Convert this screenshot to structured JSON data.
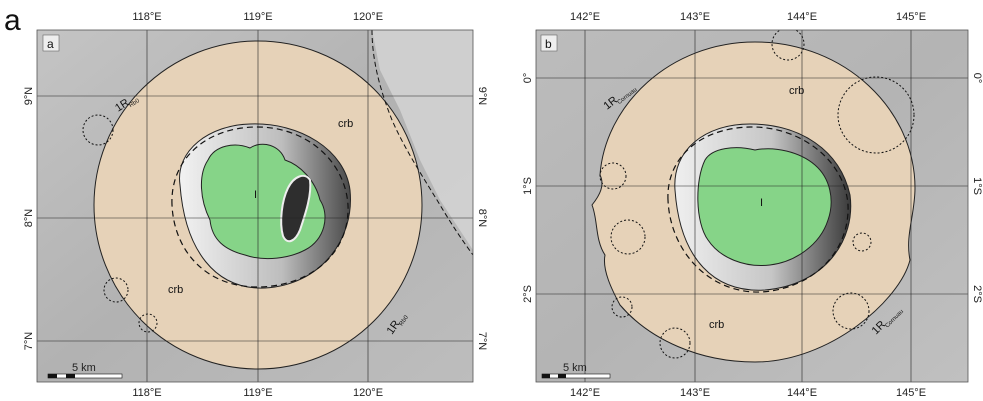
{
  "figure": {
    "label": "a",
    "panels": [
      {
        "id": "a",
        "panel_label": "a",
        "lon_labels": [
          "118°E",
          "119°E",
          "120°E"
        ],
        "lat_labels_left": [
          "9°N",
          "8°N",
          "7°N"
        ],
        "lat_labels_right": [
          "9°N",
          "8°N",
          "7°N"
        ],
        "unit_labels": [
          "crb",
          "crb",
          "I"
        ],
        "radius_label_main": "1R",
        "radius_label_sub": "Rb0",
        "scale_label": "5 km"
      },
      {
        "id": "b",
        "panel_label": "b",
        "lon_labels": [
          "142°E",
          "143°E",
          "144°E",
          "145°E"
        ],
        "lat_labels_left": [
          "0°",
          "1°S",
          "2°S"
        ],
        "lat_labels_right": [
          "0°",
          "1°S",
          "2°S"
        ],
        "unit_labels": [
          "crb",
          "crb",
          "I"
        ],
        "radius_label_main": "1R",
        "radius_label_sub": "Cornuau",
        "scale_label": "5 km"
      }
    ]
  },
  "colors": {
    "terrain": "#b8b8b8",
    "ejecta": "#e6d2b8",
    "floor": "#86d488",
    "outline": "#222222"
  }
}
